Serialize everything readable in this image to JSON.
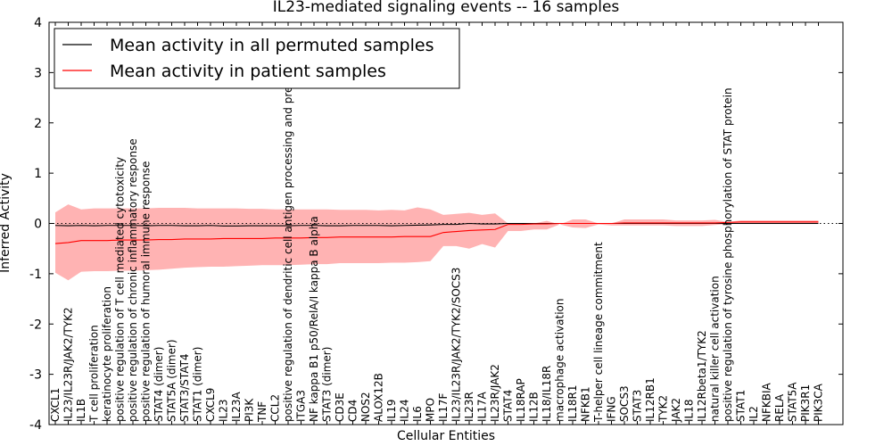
{
  "chart_data": {
    "type": "line",
    "title": "IL23-mediated signaling events -- 16 samples",
    "xlabel": "Cellular Entities",
    "ylabel": "Inferred Activity",
    "ylim": [
      -4,
      4
    ],
    "yticks": [
      -4,
      -3,
      -2,
      -1,
      0,
      1,
      2,
      3,
      4
    ],
    "reference_line": 0,
    "legend": {
      "placement": "top-left",
      "entries": [
        {
          "label": "Mean activity in all permuted samples",
          "color": "#000000"
        },
        {
          "label": "Mean activity in patient samples",
          "color": "#ff0000"
        }
      ]
    },
    "categories": [
      "CXCL1",
      "IL23/IL23R/JAK2/TYK2",
      "IL1B",
      "T cell proliferation",
      "keratinocyte proliferation",
      "positive regulation of T cell mediated cytotoxicity",
      "positive regulation of chronic inflammatory response",
      "positive regulation of humoral immune response",
      "STAT4 (dimer)",
      "STAT5A (dimer)",
      "STAT3/STAT4",
      "STAT1 (dimer)",
      "CXCL9",
      "IL23",
      "IL23A",
      "PI3K",
      "TNF",
      "CCL2",
      "positive regulation of dendritic cell antigen processing and presentation",
      "ITGA3",
      "NF kappa B1 p50/RelA/I kappa B alpha",
      "STAT3 (dimer)",
      "CD3E",
      "CD4",
      "NOS2",
      "ALOX12B",
      "IL19",
      "IL24",
      "IL6",
      "MPO",
      "IL17F",
      "IL23/IL23R/JAK2/TYK2/SOCS3",
      "IL23R",
      "IL17A",
      "IL23R/JAK2",
      "STAT4",
      "IL18RAP",
      "IL12B",
      "IL18/IL18R",
      "macrophage activation",
      "IL18R1",
      "NFKB1",
      "T-helper cell lineage commitment",
      "IFNG",
      "SOCS3",
      "STAT3",
      "IL12RB1",
      "TYK2",
      "JAK2",
      "IL18",
      "IL12Rbeta1/TYK2",
      "natural killer cell activation",
      "positive regulation of tyrosine phosphorylation of STAT protein",
      "STAT1",
      "IL2",
      "NFKBIA",
      "RELA",
      "STAT5A",
      "PIK3R1",
      "PIK3CA"
    ],
    "series": [
      {
        "name": "Mean activity in all permuted samples",
        "color": "#000000",
        "values": [
          -0.04,
          -0.045,
          -0.04,
          -0.045,
          -0.04,
          -0.04,
          -0.04,
          -0.045,
          -0.04,
          -0.04,
          -0.045,
          -0.045,
          -0.04,
          -0.05,
          -0.05,
          -0.045,
          -0.045,
          -0.045,
          -0.045,
          -0.04,
          -0.04,
          -0.045,
          -0.045,
          -0.04,
          -0.04,
          -0.04,
          -0.045,
          -0.04,
          -0.035,
          -0.03,
          -0.02,
          -0.02,
          0.0,
          -0.01,
          -0.01,
          0.0,
          0.0,
          0.0,
          0.0,
          0.0,
          0.0,
          0.0,
          0.0,
          0.0,
          0.0,
          0.0,
          0.0,
          0.0,
          0.0,
          0.0,
          0.0,
          0.0,
          0.0,
          0.0,
          0.0,
          0.0,
          0.0,
          0.0,
          0.0,
          0.0
        ]
      },
      {
        "name": "Mean activity in patient samples",
        "color": "#ff0000",
        "values": [
          -0.4,
          -0.38,
          -0.34,
          -0.34,
          -0.34,
          -0.33,
          -0.33,
          -0.33,
          -0.32,
          -0.32,
          -0.31,
          -0.31,
          -0.31,
          -0.3,
          -0.3,
          -0.3,
          -0.3,
          -0.29,
          -0.29,
          -0.29,
          -0.28,
          -0.28,
          -0.27,
          -0.27,
          -0.27,
          -0.27,
          -0.27,
          -0.26,
          -0.26,
          -0.26,
          -0.18,
          -0.16,
          -0.14,
          -0.13,
          -0.12,
          -0.02,
          -0.02,
          -0.01,
          -0.01,
          0.0,
          0.0,
          0.0,
          0.0,
          0.0,
          0.01,
          0.01,
          0.01,
          0.01,
          0.01,
          0.01,
          0.01,
          0.01,
          0.02,
          0.03,
          0.03,
          0.03,
          0.03,
          0.03,
          0.03,
          0.03
        ]
      }
    ],
    "band": {
      "name": "Patient sample spread",
      "color": "#ff9999",
      "upper": [
        0.22,
        0.38,
        0.28,
        0.3,
        0.3,
        0.3,
        0.3,
        0.3,
        0.31,
        0.31,
        0.31,
        0.3,
        0.3,
        0.3,
        0.3,
        0.29,
        0.29,
        0.28,
        0.28,
        0.28,
        0.28,
        0.28,
        0.27,
        0.27,
        0.27,
        0.26,
        0.27,
        0.26,
        0.32,
        0.28,
        0.17,
        0.19,
        0.21,
        0.17,
        0.2,
        0.0,
        0.0,
        0.0,
        0.05,
        -0.02,
        0.08,
        0.08,
        0.0,
        0.0,
        0.08,
        0.08,
        0.08,
        0.08,
        0.06,
        0.06,
        0.06,
        0.07,
        0.03,
        0.06,
        0.06,
        0.06,
        0.06,
        0.06,
        0.06,
        0.06
      ],
      "lower": [
        -0.98,
        -1.13,
        -0.96,
        -0.95,
        -0.95,
        -0.94,
        -0.94,
        -0.93,
        -0.92,
        -0.9,
        -0.88,
        -0.87,
        -0.86,
        -0.86,
        -0.85,
        -0.84,
        -0.83,
        -0.83,
        -0.83,
        -0.82,
        -0.81,
        -0.81,
        -0.79,
        -0.79,
        -0.79,
        -0.79,
        -0.78,
        -0.78,
        -0.77,
        -0.75,
        -0.45,
        -0.45,
        -0.5,
        -0.41,
        -0.48,
        -0.15,
        -0.15,
        -0.12,
        -0.12,
        -0.02,
        -0.08,
        -0.09,
        -0.02,
        -0.04,
        -0.04,
        -0.04,
        -0.04,
        -0.04,
        -0.05,
        -0.05,
        -0.05,
        -0.03,
        -0.01,
        -0.01,
        -0.01,
        -0.01,
        -0.01,
        -0.01,
        -0.01,
        -0.01
      ]
    }
  }
}
